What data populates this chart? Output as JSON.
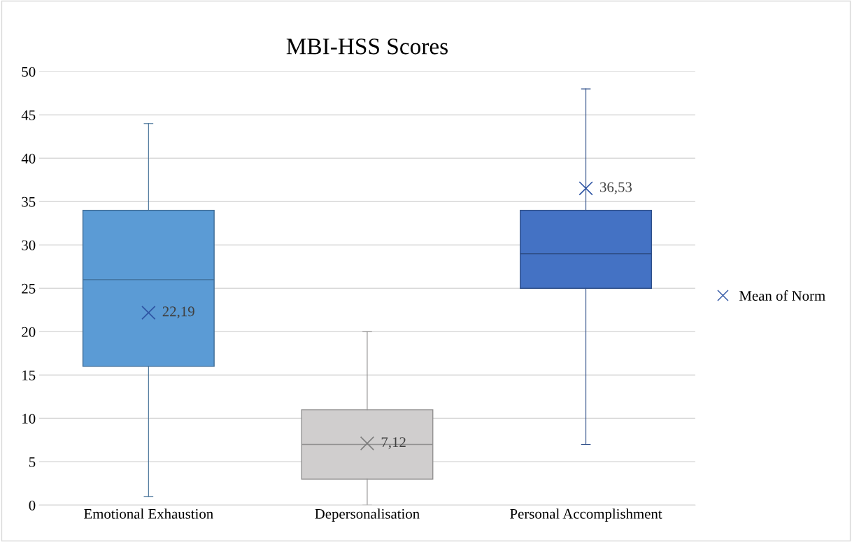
{
  "chart_data": {
    "type": "box",
    "title": "MBI-HSS Scores",
    "categories": [
      "Emotional Exhaustion",
      "Depersonalisation",
      "Personal Accomplishment"
    ],
    "boxes": [
      {
        "low": 1,
        "q1": 16,
        "median": 26,
        "q3": 34,
        "high": 44
      },
      {
        "low": 0,
        "q1": 3,
        "median": 7,
        "q3": 11,
        "high": 20
      },
      {
        "low": 7,
        "q1": 25,
        "median": 29,
        "q3": 34,
        "high": 48
      }
    ],
    "colors": [
      "#5b9bd5",
      "#d0cece",
      "#4472c4"
    ],
    "series": [
      {
        "type": "scatter",
        "name": "Mean of Norm",
        "x": [
          "Emotional Exhaustion",
          "Depersonalisation",
          "Personal Accomplishment"
        ],
        "values": [
          22.19,
          7.12,
          36.53
        ],
        "value_labels": [
          "22,19",
          "7,12",
          "36,53"
        ],
        "color": "#2f55a4",
        "colors": [
          "#2f55a4",
          "#7f7f7f",
          "#2f55a4"
        ],
        "marker": "cross"
      }
    ],
    "ylim": [
      0,
      50
    ],
    "yticks": [
      0,
      5,
      10,
      15,
      20,
      25,
      30,
      35,
      40,
      45,
      50
    ],
    "grid": "y",
    "legend": "right"
  }
}
